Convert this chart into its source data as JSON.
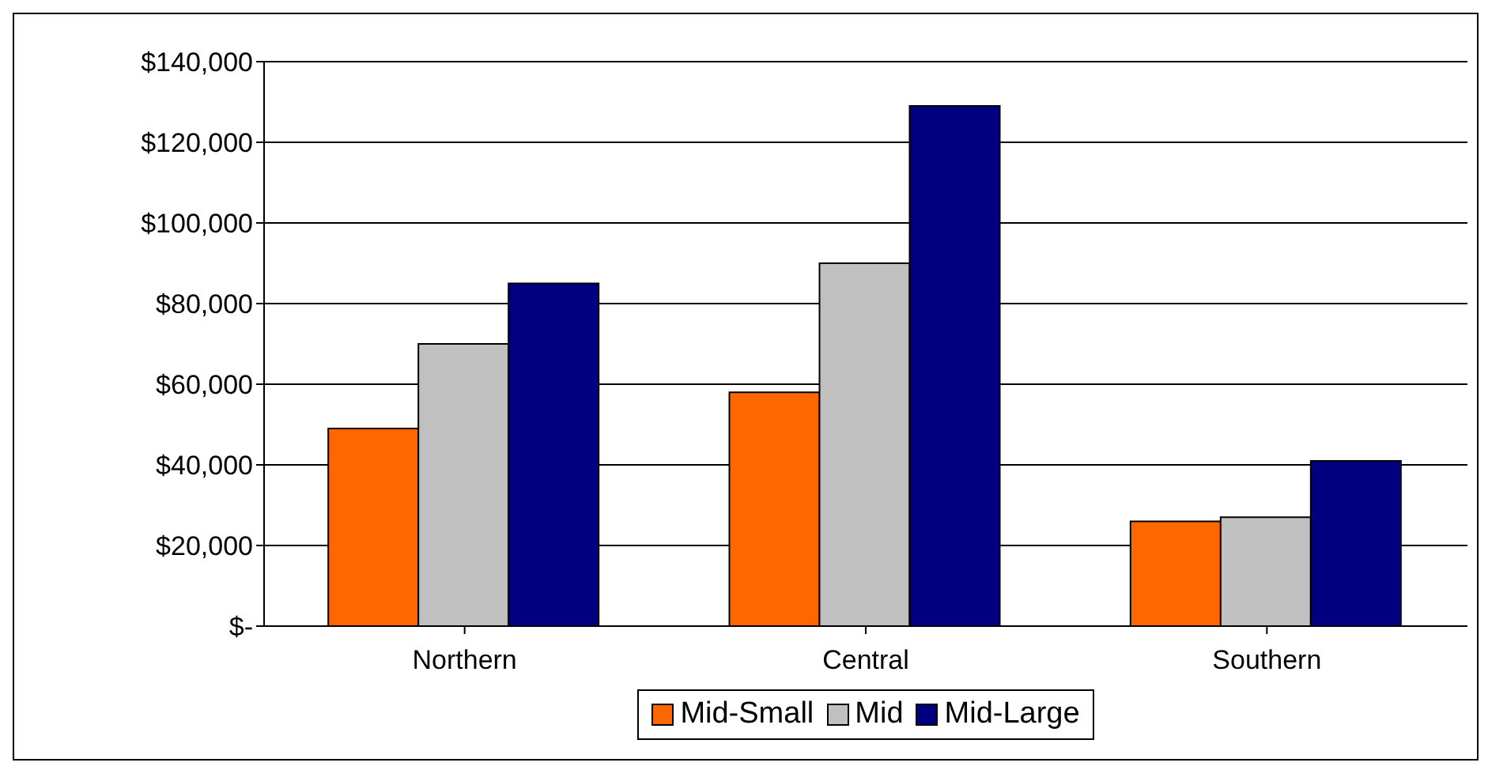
{
  "chart_data": {
    "type": "bar",
    "categories": [
      "Northern",
      "Central",
      "Southern"
    ],
    "series": [
      {
        "name": "Mid-Small",
        "color": "#ff6600",
        "values": [
          49000,
          58000,
          26000
        ]
      },
      {
        "name": "Mid",
        "color": "#c0c0c0",
        "values": [
          70000,
          90000,
          27000
        ]
      },
      {
        "name": "Mid-Large",
        "color": "#000080",
        "values": [
          85000,
          129000,
          41000
        ]
      }
    ],
    "ylim": [
      0,
      140000
    ],
    "yticks": [
      {
        "value": 0,
        "label": "$-"
      },
      {
        "value": 20000,
        "label": "$20,000"
      },
      {
        "value": 40000,
        "label": "$40,000"
      },
      {
        "value": 60000,
        "label": "$60,000"
      },
      {
        "value": 80000,
        "label": "$80,000"
      },
      {
        "value": 100000,
        "label": "$100,000"
      },
      {
        "value": 120000,
        "label": "$120,000"
      },
      {
        "value": 140000,
        "label": "$140,000"
      }
    ],
    "grid": "y",
    "legend": "bottom"
  }
}
